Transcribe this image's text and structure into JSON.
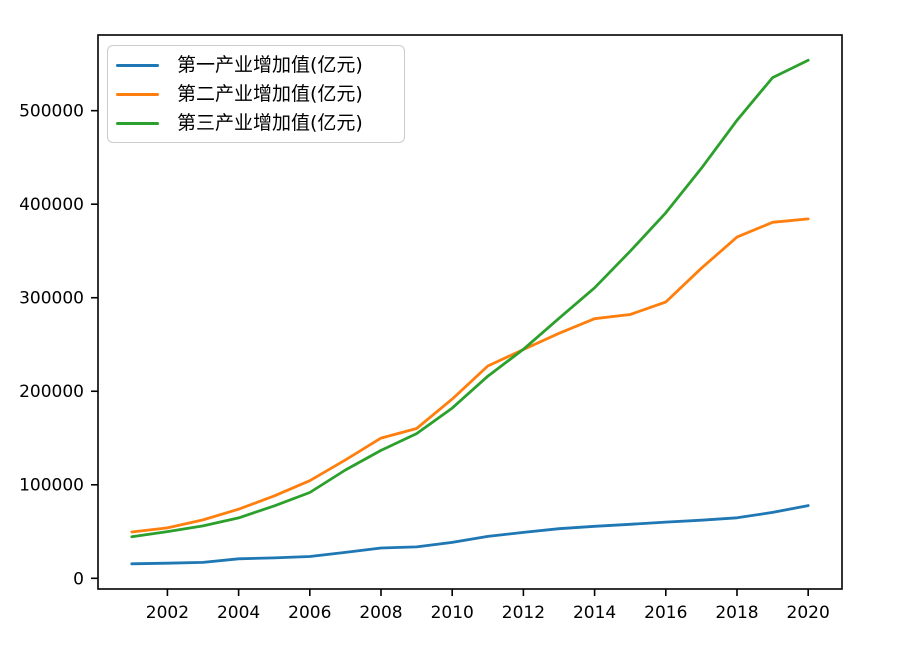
{
  "figure": {
    "background": "#ffffff",
    "axis_color": "#000000",
    "tick_label_color": "#000000"
  },
  "chart_data": {
    "type": "line",
    "title": "",
    "xlabel": "",
    "ylabel": "",
    "grid": false,
    "legend_position": "upper-left",
    "x": [
      2001,
      2002,
      2003,
      2004,
      2005,
      2006,
      2007,
      2008,
      2009,
      2010,
      2011,
      2012,
      2013,
      2014,
      2015,
      2016,
      2017,
      2018,
      2019,
      2020
    ],
    "series": [
      {
        "name": "第一产业增加值(亿元)",
        "color": "#1f77b4",
        "values": [
          15502,
          16190,
          16970,
          20904,
          21806,
          23317,
          27674,
          32464,
          33584,
          38431,
          44781,
          49085,
          53028,
          55626,
          57775,
          60139,
          62100,
          64745,
          70467,
          77754
        ]
      },
      {
        "name": "第二产业增加值(亿元)",
        "color": "#ff7f0e",
        "values": [
          49512,
          53897,
          62436,
          73904,
          88084,
          104361,
          126634,
          149956,
          160171,
          191630,
          227039,
          244643,
          261956,
          277571,
          282040,
          295427,
          331580,
          364835,
          380670,
          384255
        ]
      },
      {
        "name": "第三产业增加值(亿元)",
        "color": "#2ca02c",
        "values": [
          44362,
          49899,
          56005,
          64561,
          77428,
          91759,
          115810,
          136805,
          154747,
          182038,
          216123,
          244852,
          277983,
          310654,
          349695,
          390828,
          438355,
          489701,
          535371,
          553977
        ]
      }
    ],
    "xticks": [
      2002,
      2004,
      2006,
      2008,
      2010,
      2012,
      2014,
      2016,
      2018,
      2020
    ],
    "yticks": [
      0,
      100000,
      200000,
      300000,
      400000,
      500000
    ],
    "xlim": [
      2000.05,
      2020.95
    ],
    "ylim": [
      -11422,
      580901
    ]
  }
}
